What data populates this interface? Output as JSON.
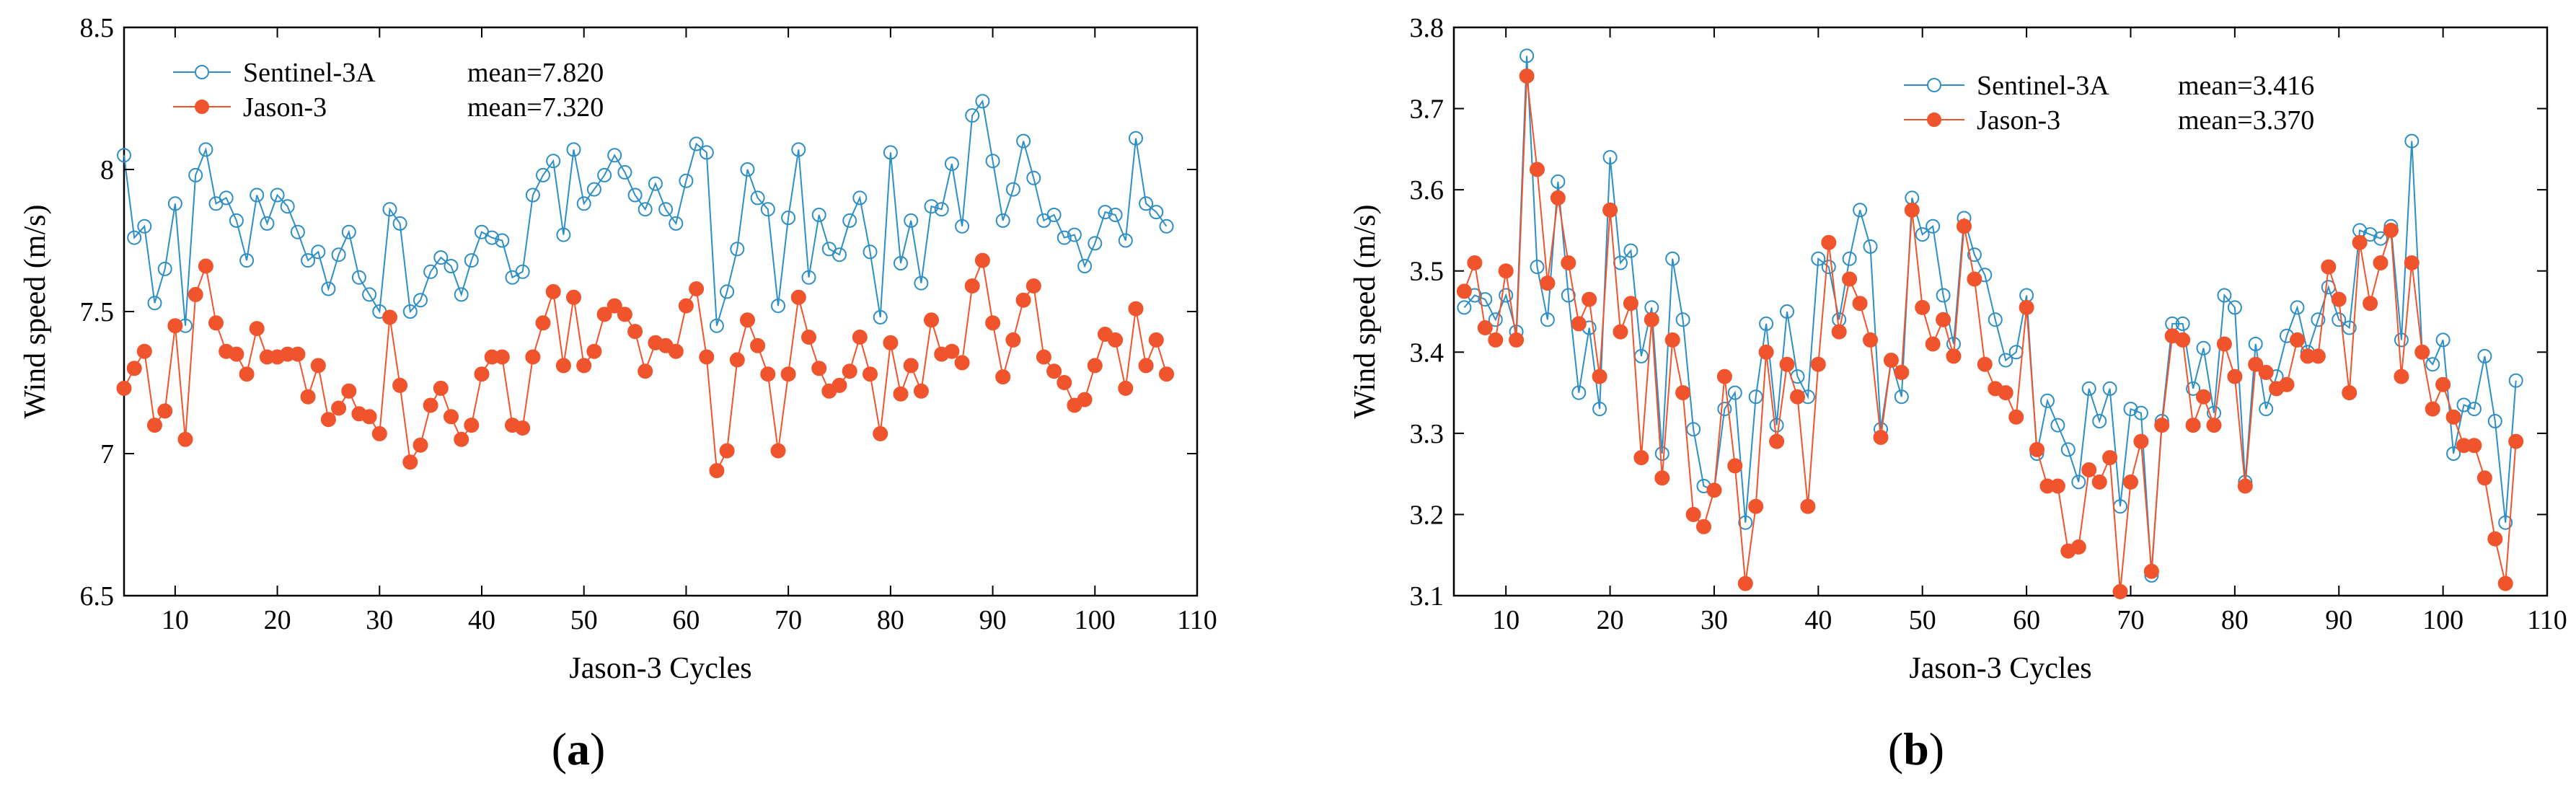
{
  "chart_data": [
    {
      "type": "line",
      "panel_label": "a",
      "xlabel": "Jason-3 Cycles",
      "ylabel": "Wind speed (m/s)",
      "xlim": [
        5,
        110
      ],
      "ylim": [
        6.5,
        8.5
      ],
      "xticks": [
        10,
        20,
        30,
        40,
        50,
        60,
        70,
        80,
        90,
        100,
        110
      ],
      "yticks": [
        6.5,
        7,
        7.5,
        8,
        8.5
      ],
      "ytick_labels": [
        "6.5",
        "7",
        "7.5",
        "8",
        "8.5"
      ],
      "grid": false,
      "legend_position": "top-left",
      "x": [
        5,
        6,
        7,
        8,
        9,
        10,
        11,
        12,
        13,
        14,
        15,
        16,
        17,
        18,
        19,
        20,
        21,
        22,
        23,
        24,
        25,
        26,
        27,
        28,
        29,
        30,
        31,
        32,
        33,
        34,
        35,
        36,
        37,
        38,
        39,
        40,
        41,
        42,
        43,
        44,
        45,
        46,
        47,
        48,
        49,
        50,
        51,
        52,
        53,
        54,
        55,
        56,
        57,
        58,
        59,
        60,
        61,
        62,
        63,
        64,
        65,
        66,
        67,
        68,
        69,
        70,
        71,
        72,
        73,
        74,
        75,
        76,
        77,
        78,
        79,
        80,
        81,
        82,
        83,
        84,
        85,
        86,
        87,
        88,
        89,
        90,
        91,
        92,
        93,
        94,
        95,
        96,
        97,
        98,
        99,
        100,
        101,
        102,
        103,
        104,
        105,
        106,
        107
      ],
      "series": [
        {
          "name": "Sentinel-3A",
          "mean_label": "mean=7.820",
          "color": "#2e8fc6",
          "marker": "open-circle",
          "values": [
            8.05,
            7.76,
            7.8,
            7.53,
            7.65,
            7.88,
            7.45,
            7.98,
            8.07,
            7.88,
            7.9,
            7.82,
            7.68,
            7.91,
            7.81,
            7.91,
            7.87,
            7.78,
            7.68,
            7.71,
            7.58,
            7.7,
            7.78,
            7.62,
            7.56,
            7.5,
            7.86,
            7.81,
            7.5,
            7.54,
            7.64,
            7.69,
            7.66,
            7.56,
            7.68,
            7.78,
            7.76,
            7.75,
            7.62,
            7.64,
            7.91,
            7.98,
            8.03,
            7.77,
            8.07,
            7.88,
            7.93,
            7.98,
            8.05,
            7.99,
            7.91,
            7.86,
            7.95,
            7.86,
            7.81,
            7.96,
            8.09,
            8.06,
            7.45,
            7.57,
            7.72,
            8.0,
            7.9,
            7.86,
            7.52,
            7.83,
            8.07,
            7.62,
            7.84,
            7.72,
            7.7,
            7.82,
            7.9,
            7.71,
            7.48,
            8.06,
            7.67,
            7.82,
            7.6,
            7.87,
            7.86,
            8.02,
            7.8,
            8.19,
            8.24,
            8.03,
            7.82,
            7.93,
            8.1,
            7.97,
            7.82,
            7.84,
            7.76,
            7.77,
            7.66,
            7.74,
            7.85,
            7.84,
            7.75,
            8.11,
            7.88,
            7.85,
            7.8
          ]
        },
        {
          "name": "Jason-3",
          "mean_label": "mean=7.320",
          "color": "#f0542c",
          "marker": "filled-circle",
          "values": [
            7.23,
            7.3,
            7.36,
            7.1,
            7.15,
            7.45,
            7.05,
            7.56,
            7.66,
            7.46,
            7.36,
            7.35,
            7.28,
            7.44,
            7.34,
            7.34,
            7.35,
            7.35,
            7.2,
            7.31,
            7.12,
            7.16,
            7.22,
            7.14,
            7.13,
            7.07,
            7.48,
            7.24,
            6.97,
            7.03,
            7.17,
            7.23,
            7.13,
            7.05,
            7.1,
            7.28,
            7.34,
            7.34,
            7.1,
            7.09,
            7.34,
            7.46,
            7.57,
            7.31,
            7.55,
            7.31,
            7.36,
            7.49,
            7.52,
            7.49,
            7.43,
            7.29,
            7.39,
            7.38,
            7.36,
            7.52,
            7.58,
            7.34,
            6.94,
            7.01,
            7.33,
            7.47,
            7.38,
            7.28,
            7.01,
            7.28,
            7.55,
            7.41,
            7.3,
            7.22,
            7.24,
            7.29,
            7.41,
            7.28,
            7.07,
            7.39,
            7.21,
            7.31,
            7.22,
            7.47,
            7.35,
            7.36,
            7.32,
            7.59,
            7.68,
            7.46,
            7.27,
            7.4,
            7.54,
            7.59,
            7.34,
            7.29,
            7.25,
            7.17,
            7.19,
            7.31,
            7.42,
            7.4,
            7.23,
            7.51,
            7.31,
            7.4,
            7.28
          ]
        }
      ]
    },
    {
      "type": "line",
      "panel_label": "b",
      "xlabel": "Jason-3 Cycles",
      "ylabel": "Wind speed (m/s)",
      "xlim": [
        5,
        110
      ],
      "ylim": [
        3.1,
        3.8
      ],
      "xticks": [
        10,
        20,
        30,
        40,
        50,
        60,
        70,
        80,
        90,
        100,
        110
      ],
      "yticks": [
        3.1,
        3.2,
        3.3,
        3.4,
        3.5,
        3.6,
        3.7,
        3.8
      ],
      "ytick_labels": [
        "3.1",
        "3.2",
        "3.3",
        "3.4",
        "3.5",
        "3.6",
        "3.7",
        "3.8"
      ],
      "grid": false,
      "legend_position": "top-center",
      "x": [
        6,
        7,
        8,
        9,
        10,
        11,
        12,
        13,
        14,
        15,
        16,
        17,
        18,
        19,
        20,
        21,
        22,
        23,
        24,
        25,
        26,
        27,
        28,
        29,
        30,
        31,
        32,
        33,
        34,
        35,
        36,
        37,
        38,
        39,
        40,
        41,
        42,
        43,
        44,
        45,
        46,
        47,
        48,
        49,
        50,
        51,
        52,
        53,
        54,
        55,
        56,
        57,
        58,
        59,
        60,
        61,
        62,
        63,
        64,
        65,
        66,
        67,
        68,
        69,
        70,
        71,
        72,
        73,
        74,
        75,
        76,
        77,
        78,
        79,
        80,
        81,
        82,
        83,
        84,
        85,
        86,
        87,
        88,
        89,
        90,
        91,
        92,
        93,
        94,
        95,
        96,
        97,
        98,
        99,
        100,
        101,
        102,
        103,
        104,
        105,
        106,
        107
      ],
      "series": [
        {
          "name": "Sentinel-3A",
          "mean_label": "mean=3.416",
          "color": "#2e8fc6",
          "marker": "open-circle",
          "values": [
            3.455,
            3.47,
            3.465,
            3.44,
            3.47,
            3.425,
            3.765,
            3.505,
            3.44,
            3.61,
            3.47,
            3.35,
            3.43,
            3.33,
            3.64,
            3.51,
            3.525,
            3.395,
            3.455,
            3.275,
            3.515,
            3.44,
            3.305,
            3.235,
            3.23,
            3.33,
            3.35,
            3.19,
            3.345,
            3.435,
            3.31,
            3.45,
            3.37,
            3.345,
            3.515,
            3.505,
            3.44,
            3.515,
            3.575,
            3.53,
            3.305,
            3.39,
            3.345,
            3.59,
            3.545,
            3.555,
            3.47,
            3.41,
            3.565,
            3.52,
            3.495,
            3.44,
            3.39,
            3.4,
            3.47,
            3.275,
            3.34,
            3.31,
            3.28,
            3.24,
            3.355,
            3.315,
            3.355,
            3.21,
            3.33,
            3.325,
            3.125,
            3.315,
            3.435,
            3.435,
            3.355,
            3.405,
            3.325,
            3.47,
            3.455,
            3.24,
            3.41,
            3.33,
            3.37,
            3.42,
            3.455,
            3.4,
            3.44,
            3.48,
            3.44,
            3.43,
            3.55,
            3.545,
            3.54,
            3.555,
            3.415,
            3.66,
            3.4,
            3.385,
            3.415,
            3.275,
            3.335,
            3.33,
            3.395,
            3.315,
            3.19,
            3.365
          ]
        },
        {
          "name": "Jason-3",
          "mean_label": "mean=3.370",
          "color": "#f0542c",
          "marker": "filled-circle",
          "values": [
            3.475,
            3.51,
            3.43,
            3.415,
            3.5,
            3.415,
            3.74,
            3.625,
            3.485,
            3.59,
            3.51,
            3.435,
            3.465,
            3.37,
            3.575,
            3.425,
            3.46,
            3.27,
            3.44,
            3.245,
            3.415,
            3.35,
            3.2,
            3.185,
            3.23,
            3.37,
            3.26,
            3.115,
            3.21,
            3.4,
            3.29,
            3.385,
            3.345,
            3.21,
            3.385,
            3.535,
            3.425,
            3.49,
            3.46,
            3.415,
            3.295,
            3.39,
            3.375,
            3.575,
            3.455,
            3.41,
            3.44,
            3.395,
            3.555,
            3.49,
            3.385,
            3.355,
            3.35,
            3.32,
            3.455,
            3.28,
            3.235,
            3.235,
            3.155,
            3.16,
            3.255,
            3.24,
            3.27,
            3.105,
            3.24,
            3.29,
            3.13,
            3.31,
            3.42,
            3.415,
            3.31,
            3.345,
            3.31,
            3.41,
            3.37,
            3.235,
            3.385,
            3.375,
            3.355,
            3.36,
            3.415,
            3.395,
            3.395,
            3.505,
            3.465,
            3.35,
            3.535,
            3.46,
            3.51,
            3.55,
            3.37,
            3.51,
            3.4,
            3.33,
            3.36,
            3.32,
            3.285,
            3.285,
            3.245,
            3.17,
            3.115,
            3.29
          ]
        }
      ]
    }
  ]
}
